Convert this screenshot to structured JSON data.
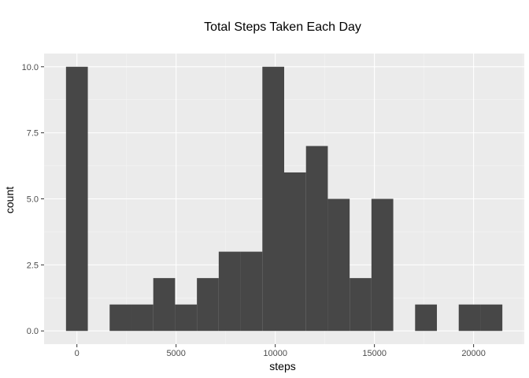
{
  "chart_data": {
    "type": "bar",
    "title": "Total Steps Taken Each Day",
    "xlabel": "steps",
    "ylabel": "count",
    "bin_width": 1100,
    "bins": [
      {
        "x0": -550,
        "x1": 550,
        "count": 10
      },
      {
        "x0": 550,
        "x1": 1650,
        "count": 0
      },
      {
        "x0": 1650,
        "x1": 2750,
        "count": 1
      },
      {
        "x0": 2750,
        "x1": 3850,
        "count": 1
      },
      {
        "x0": 3850,
        "x1": 4950,
        "count": 2
      },
      {
        "x0": 4950,
        "x1": 6050,
        "count": 1
      },
      {
        "x0": 6050,
        "x1": 7150,
        "count": 2
      },
      {
        "x0": 7150,
        "x1": 8250,
        "count": 3
      },
      {
        "x0": 8250,
        "x1": 9350,
        "count": 3
      },
      {
        "x0": 9350,
        "x1": 10450,
        "count": 10
      },
      {
        "x0": 10450,
        "x1": 11550,
        "count": 6
      },
      {
        "x0": 11550,
        "x1": 12650,
        "count": 7
      },
      {
        "x0": 12650,
        "x1": 13750,
        "count": 5
      },
      {
        "x0": 13750,
        "x1": 14850,
        "count": 2
      },
      {
        "x0": 14850,
        "x1": 15950,
        "count": 5
      },
      {
        "x0": 15950,
        "x1": 17050,
        "count": 0
      },
      {
        "x0": 17050,
        "x1": 18150,
        "count": 1
      },
      {
        "x0": 18150,
        "x1": 19250,
        "count": 0
      },
      {
        "x0": 19250,
        "x1": 20350,
        "count": 1
      },
      {
        "x0": 20350,
        "x1": 21450,
        "count": 1
      }
    ],
    "xlim": [
      -1655,
      22555
    ],
    "ylim": [
      -0.5,
      10.5
    ],
    "x_ticks": [
      0,
      5000,
      10000,
      15000,
      20000
    ],
    "x_tick_labels": [
      "0",
      "5000",
      "10000",
      "15000",
      "20000"
    ],
    "y_ticks": [
      0,
      2.5,
      5,
      7.5,
      10
    ],
    "y_tick_labels": [
      "0.0",
      "2.5",
      "5.0",
      "7.5",
      "10.0"
    ],
    "grid": true,
    "colors": {
      "bar": "#474747",
      "panel": "#ebebeb",
      "grid_major": "#ffffff",
      "grid_minor": "#f5f5f5"
    }
  }
}
